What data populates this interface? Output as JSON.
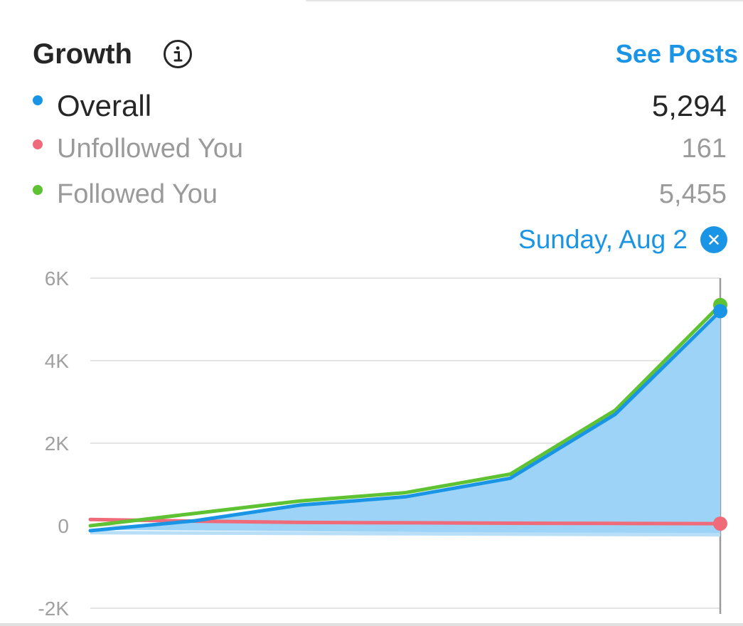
{
  "header": {
    "title": "Growth",
    "link_label": "See Posts"
  },
  "legend": [
    {
      "key": "overall",
      "label": "Overall",
      "value": "5,294",
      "color": "#1a95e6"
    },
    {
      "key": "unfollowed",
      "label": "Unfollowed You",
      "value": "161",
      "color": "#f06b7a"
    },
    {
      "key": "followed",
      "label": "Followed You",
      "value": "5,455",
      "color": "#5ec232"
    }
  ],
  "selected_date": "Sunday, Aug 2",
  "icons": {
    "info": "info-circle-icon",
    "clear_date": "close-icon"
  },
  "chart_data": {
    "type": "line",
    "x": [
      0,
      1,
      2,
      3,
      4,
      5,
      6
    ],
    "ylim": [
      -2000,
      6000
    ],
    "yticks": [
      6000,
      4000,
      2000,
      0,
      -2000
    ],
    "ytick_labels": [
      "6K",
      "4K",
      "2K",
      "0",
      "-2K"
    ],
    "grid": true,
    "series": [
      {
        "name": "Overall",
        "color": "#1a95e6",
        "fill": "#9dd3f7",
        "area": true,
        "values": [
          -120,
          120,
          500,
          700,
          1150,
          2700,
          5200
        ]
      },
      {
        "name": "Unfollowed You",
        "color": "#f06b7a",
        "values": [
          150,
          110,
          80,
          70,
          60,
          55,
          50
        ]
      },
      {
        "name": "Followed You",
        "color": "#5ec232",
        "values": [
          0,
          300,
          600,
          800,
          1250,
          2800,
          5350
        ]
      }
    ]
  }
}
